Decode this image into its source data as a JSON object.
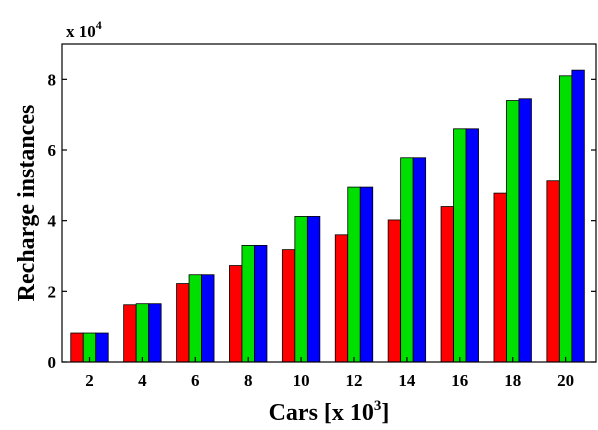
{
  "chart_data": {
    "type": "bar",
    "xlabel_main": "Cars [x 10",
    "xlabel_exp": "3",
    "xlabel_close": "]",
    "ylabel": "Recharge instances",
    "y_multiplier_base": "x 10",
    "y_multiplier_exp": "4",
    "categories": [
      "2",
      "4",
      "6",
      "8",
      "10",
      "12",
      "14",
      "16",
      "18",
      "20"
    ],
    "y_ticks": [
      "0",
      "2",
      "4",
      "6",
      "8"
    ],
    "ylim": [
      0,
      9
    ],
    "grid": false,
    "series": [
      {
        "color": "#ff0000",
        "values": [
          0.82,
          1.62,
          2.22,
          2.73,
          3.18,
          3.6,
          4.02,
          4.4,
          4.78,
          5.13
        ]
      },
      {
        "color": "#00e000",
        "values": [
          0.82,
          1.65,
          2.47,
          3.3,
          4.12,
          4.95,
          5.78,
          6.6,
          7.4,
          8.1
        ]
      },
      {
        "color": "#0000ff",
        "values": [
          0.82,
          1.65,
          2.47,
          3.3,
          4.12,
          4.95,
          5.78,
          6.6,
          7.45,
          8.26
        ]
      }
    ]
  }
}
